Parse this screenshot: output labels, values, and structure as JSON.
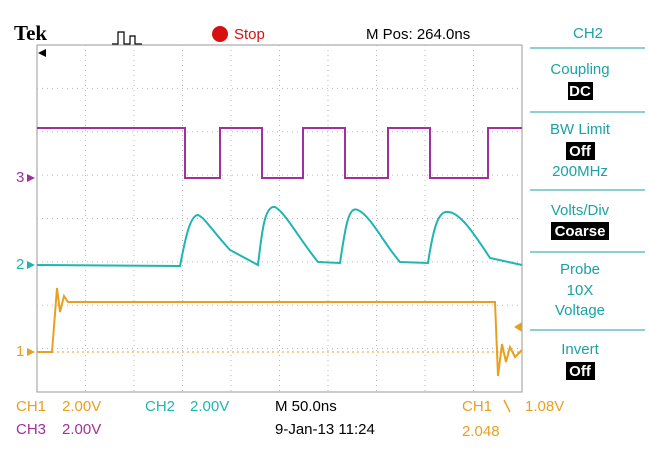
{
  "header": {
    "brand": "Tek",
    "status": "Stop",
    "position": "M Pos: 264.0ns"
  },
  "side_menu": {
    "channel": "CH2",
    "coupling": {
      "label": "Coupling",
      "value": "DC"
    },
    "bw_limit": {
      "label": "BW Limit",
      "value": "Off",
      "extra": "200MHz"
    },
    "volts_div": {
      "label": "Volts/Div",
      "value": "Coarse"
    },
    "probe": {
      "label": "Probe",
      "lines": [
        "10X",
        "Voltage"
      ]
    },
    "invert": {
      "label": "Invert",
      "value": "Off"
    }
  },
  "markers": [
    "3",
    "2",
    "1"
  ],
  "footer": {
    "ch1_label": "CH1",
    "ch1_scale": "2.00V",
    "ch2_label": "CH2",
    "ch2_scale": "2.00V",
    "timebase": "M 50.0ns",
    "trigger_source": "CH1",
    "trigger_level": "1.08V",
    "ch3_label": "CH3",
    "ch3_scale": "2.00V",
    "date": "9-Jan-13 11:24",
    "frequency": "2.048"
  }
}
